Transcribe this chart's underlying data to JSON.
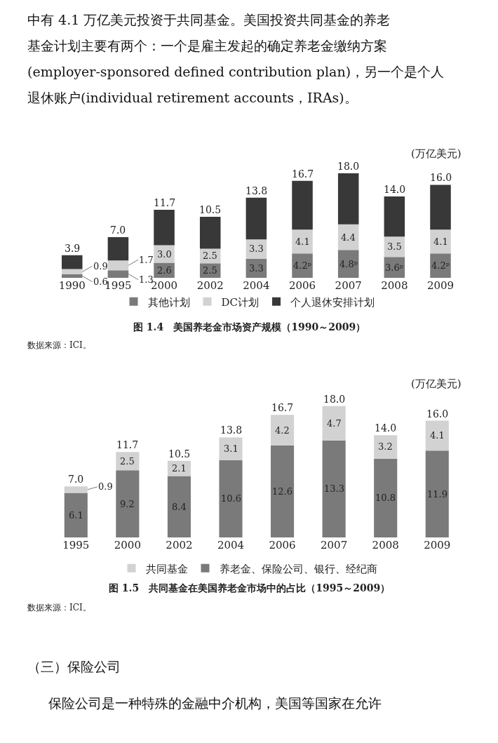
{
  "chart_data": [
    {
      "type": "bar",
      "stacked": true,
      "title": "图 1.4　美国养老金市场资产规模（1990～2009）",
      "ylabel": "(万亿美元)",
      "categories": [
        "1990",
        "1995",
        "2000",
        "2002",
        "2004",
        "2006",
        "2007",
        "2008",
        "2009"
      ],
      "series": [
        {
          "name": "其他计划",
          "color": "#7a7a7a",
          "values": [
            0.6,
            1.3,
            2.6,
            2.5,
            3.3,
            4.2,
            4.8,
            3.6,
            4.2
          ],
          "value_labels": [
            "0.6",
            "1.3",
            "2.6",
            "2.5",
            "3.3",
            "4.2ᵖ",
            "4.8ᵖ",
            "3.6ᵖ",
            "4.2ᵖ"
          ]
        },
        {
          "name": "DC计划",
          "color": "#d2d2d2",
          "values": [
            0.9,
            1.7,
            3.0,
            2.5,
            3.3,
            4.1,
            4.4,
            3.5,
            4.1
          ],
          "value_labels": [
            "0.9",
            "1.7",
            "3.0",
            "2.5",
            "3.3",
            "4.1",
            "4.4",
            "3.5",
            "4.1"
          ]
        },
        {
          "name": "个人退休安排计划",
          "color": "#383838",
          "values": [
            2.4,
            4.0,
            6.1,
            5.5,
            7.2,
            8.4,
            8.8,
            6.9,
            7.7
          ],
          "value_labels": [
            null,
            null,
            null,
            null,
            null,
            null,
            null,
            null,
            null
          ]
        }
      ],
      "totals": [
        "3.9",
        "7.0",
        "11.7",
        "10.5",
        "13.8",
        "16.7",
        "18.0",
        "14.0",
        "16.0"
      ],
      "legend": "bottom",
      "annotations": [
        "数据来源：ICI。",
        "中有 4.1 万亿美元投资于共同基金。美国投资共同基金的养老",
        "基金计划主要有两个：一个是雇主发起的确定养老金缴纳方案",
        "(employer-sponsored defined contribution plan)，另一个是个人",
        "退休账户(individual retirement accounts，IRAs)。"
      ]
    },
    {
      "type": "bar",
      "stacked": true,
      "title": "图 1.5　共同基金在美国养老金市场中的占比（1995～2009）",
      "ylabel": "(万亿美元)",
      "categories": [
        "1995",
        "2000",
        "2002",
        "2004",
        "2006",
        "2007",
        "2008",
        "2009"
      ],
      "series": [
        {
          "name": "养老金、保险公司、银行、经纪商",
          "color": "#7a7a7a",
          "values": [
            6.1,
            9.2,
            8.4,
            10.6,
            12.6,
            13.3,
            10.8,
            11.9
          ]
        },
        {
          "name": "共同基金",
          "color": "#d2d2d2",
          "values": [
            0.9,
            2.5,
            2.1,
            3.1,
            4.2,
            4.7,
            3.2,
            4.1
          ]
        }
      ],
      "data_labels": true,
      "totals": [
        "7.0",
        "11.7",
        "10.5",
        "13.8",
        "16.7",
        "18.0",
        "14.0",
        "16.0"
      ],
      "legend": "bottom",
      "annotations": [
        "数据来源：ICI。",
        "（三）保险公司",
        "保险公司是一种特殊的金融中介机构，美国等国家在允许"
      ]
    }
  ]
}
